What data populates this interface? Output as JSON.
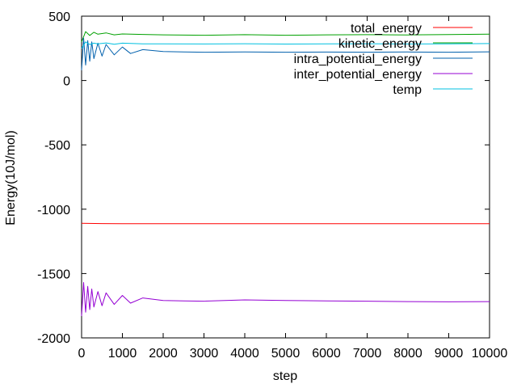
{
  "chart_data": {
    "type": "line",
    "title": "",
    "xlabel": "step",
    "ylabel": "Energy(10J/mol)",
    "xlim": [
      0,
      10000
    ],
    "ylim": [
      -2000,
      500
    ],
    "x_ticks": [
      0,
      1000,
      2000,
      3000,
      4000,
      5000,
      6000,
      7000,
      8000,
      9000,
      10000
    ],
    "y_ticks": [
      500,
      0,
      -500,
      -1000,
      -1500,
      -2000
    ],
    "x_tick_labels": [
      "0",
      "1000",
      "2000",
      "3000",
      "4000",
      "5000",
      "6000",
      "7000",
      "8000",
      "9000",
      "10000"
    ],
    "y_tick_labels": [
      "500",
      "0",
      "-500",
      "-1000",
      "-1500",
      "-2000"
    ],
    "grid": false,
    "legend_position": "top-right",
    "series": [
      {
        "name": "total_energy",
        "color": "#ff0000",
        "x": [
          0,
          500,
          1000,
          1500,
          2000,
          3000,
          4000,
          5000,
          6000,
          7000,
          8000,
          9000,
          10000
        ],
        "y": [
          -1110,
          -1112,
          -1113,
          -1113,
          -1113,
          -1113,
          -1113,
          -1113,
          -1113,
          -1113,
          -1113,
          -1113,
          -1113
        ]
      },
      {
        "name": "kinetic_energy",
        "color": "#00a000",
        "x": [
          0,
          100,
          200,
          300,
          400,
          600,
          800,
          1000,
          1500,
          2000,
          3000,
          4000,
          5000,
          6000,
          7000,
          8000,
          9000,
          10000
        ],
        "y": [
          300,
          380,
          350,
          375,
          360,
          370,
          355,
          362,
          358,
          355,
          352,
          356,
          352,
          355,
          356,
          354,
          357,
          360
        ]
      },
      {
        "name": "intra_potential_energy",
        "color": "#0060ad",
        "x": [
          0,
          50,
          100,
          150,
          200,
          250,
          300,
          400,
          500,
          600,
          800,
          1000,
          1200,
          1500,
          2000,
          2500,
          3000,
          4000,
          5000,
          6000,
          7000,
          8000,
          9000,
          10000
        ],
        "y": [
          80,
          330,
          120,
          310,
          150,
          300,
          170,
          290,
          190,
          280,
          200,
          260,
          210,
          240,
          225,
          222,
          220,
          222,
          220,
          221,
          220,
          222,
          220,
          223
        ]
      },
      {
        "name": "inter_potential_energy",
        "color": "#9400d3",
        "x": [
          0,
          50,
          100,
          150,
          200,
          250,
          300,
          400,
          500,
          600,
          800,
          1000,
          1200,
          1500,
          2000,
          2500,
          3000,
          4000,
          5000,
          6000,
          7000,
          8000,
          9000,
          10000
        ],
        "y": [
          -1830,
          -1570,
          -1800,
          -1600,
          -1780,
          -1620,
          -1760,
          -1640,
          -1750,
          -1650,
          -1740,
          -1670,
          -1730,
          -1690,
          -1710,
          -1712,
          -1715,
          -1705,
          -1710,
          -1712,
          -1715,
          -1718,
          -1720,
          -1718
        ]
      },
      {
        "name": "temp",
        "color": "#00c0e0",
        "x": [
          0,
          100,
          200,
          300,
          400,
          600,
          800,
          1000,
          1500,
          2000,
          3000,
          4000,
          5000,
          6000,
          7000,
          8000,
          9000,
          10000
        ],
        "y": [
          250,
          300,
          280,
          290,
          285,
          292,
          282,
          290,
          285,
          285,
          284,
          286,
          283,
          285,
          286,
          284,
          285,
          287
        ]
      }
    ]
  }
}
